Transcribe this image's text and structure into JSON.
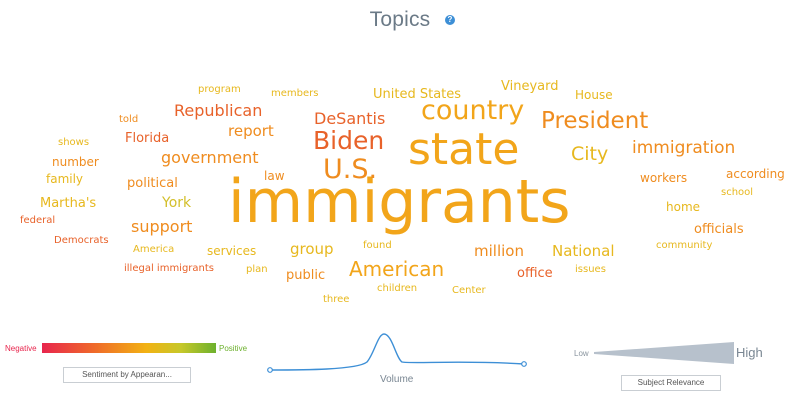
{
  "header": {
    "title": "Topics",
    "help_icon": "?"
  },
  "colors": {
    "negative": "#e8254d",
    "orange_red": "#e8622a",
    "orange": "#ef8c1f",
    "amber": "#f2a51a",
    "yellow": "#e7b81e",
    "yellow_olive": "#d3bf2a",
    "positive": "#6db12e"
  },
  "cloud_words": [
    {
      "text": "immigrants",
      "color": "#f2a51a"
    },
    {
      "text": "state",
      "color": "#f2a51a"
    },
    {
      "text": "country",
      "color": "#f2a51a"
    },
    {
      "text": "President",
      "color": "#ef8c1f"
    },
    {
      "text": "Biden",
      "color": "#e8622a"
    },
    {
      "text": "U.S.",
      "color": "#ef8c1f"
    },
    {
      "text": "American",
      "color": "#f2a51a"
    },
    {
      "text": "City",
      "color": "#e7b81e"
    },
    {
      "text": "immigration",
      "color": "#ef8c1f"
    },
    {
      "text": "DeSantis",
      "color": "#e8622a"
    },
    {
      "text": "Republican",
      "color": "#e8622a"
    },
    {
      "text": "report",
      "color": "#ef8c1f"
    },
    {
      "text": "government",
      "color": "#ef8c1f"
    },
    {
      "text": "support",
      "color": "#ef8c1f"
    },
    {
      "text": "United States",
      "color": "#e7b81e"
    },
    {
      "text": "Vineyard",
      "color": "#e7b81e"
    },
    {
      "text": "House",
      "color": "#e7b81e"
    },
    {
      "text": "National",
      "color": "#e7b81e"
    },
    {
      "text": "million",
      "color": "#ef8c1f"
    },
    {
      "text": "group",
      "color": "#e7b81e"
    },
    {
      "text": "office",
      "color": "#e8622a"
    },
    {
      "text": "public",
      "color": "#ef8c1f"
    },
    {
      "text": "Florida",
      "color": "#e8622a"
    },
    {
      "text": "York",
      "color": "#d3bf2a"
    },
    {
      "text": "political",
      "color": "#ef8c1f"
    },
    {
      "text": "family",
      "color": "#e7b81e"
    },
    {
      "text": "number",
      "color": "#ef8c1f"
    },
    {
      "text": "Martha's",
      "color": "#e7b81e"
    },
    {
      "text": "officials",
      "color": "#ef8c1f"
    },
    {
      "text": "according",
      "color": "#ef8c1f"
    },
    {
      "text": "workers",
      "color": "#ef8c1f"
    },
    {
      "text": "home",
      "color": "#e7b81e"
    },
    {
      "text": "law",
      "color": "#ef8c1f"
    },
    {
      "text": "services",
      "color": "#e7b81e"
    },
    {
      "text": "members",
      "color": "#e7b81e"
    },
    {
      "text": "program",
      "color": "#e7b81e"
    },
    {
      "text": "told",
      "color": "#ef8c1f"
    },
    {
      "text": "shows",
      "color": "#e7b81e"
    },
    {
      "text": "federal",
      "color": "#e8622a"
    },
    {
      "text": "Democrats",
      "color": "#e8622a"
    },
    {
      "text": "America",
      "color": "#e7b81e"
    },
    {
      "text": "illegal immigrants",
      "color": "#e8622a"
    },
    {
      "text": "plan",
      "color": "#e7b81e"
    },
    {
      "text": "found",
      "color": "#e7b81e"
    },
    {
      "text": "children",
      "color": "#e7b81e"
    },
    {
      "text": "three",
      "color": "#e7b81e"
    },
    {
      "text": "Center",
      "color": "#e7b81e"
    },
    {
      "text": "issues",
      "color": "#e7b81e"
    },
    {
      "text": "community",
      "color": "#e7b81e"
    },
    {
      "text": "school",
      "color": "#e7b81e"
    }
  ],
  "legend": {
    "sentiment": {
      "negative_label": "Negative",
      "positive_label": "Positive",
      "button_label": "Sentiment by Appearan..."
    },
    "volume": {
      "label": "Volume"
    },
    "relevance": {
      "low_label": "Low",
      "high_label": "High",
      "button_label": "Subject Relevance"
    }
  }
}
